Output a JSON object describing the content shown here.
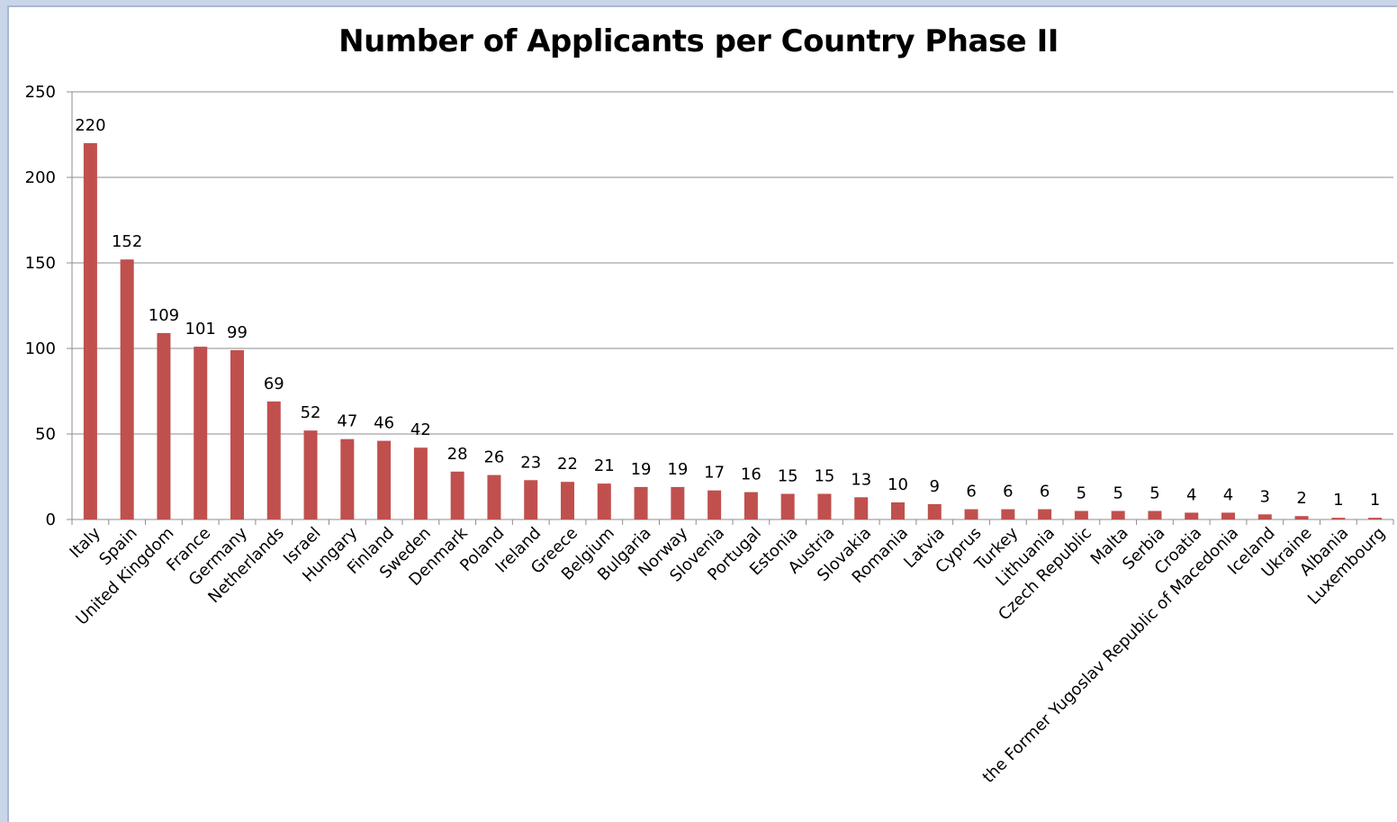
{
  "chart_data": {
    "type": "bar",
    "title": "Number of Applicants per Country Phase II",
    "xlabel": "",
    "ylabel": "",
    "ylim": [
      0,
      250
    ],
    "yticks": [
      0,
      50,
      100,
      150,
      200,
      250
    ],
    "grid": true,
    "legend": "none",
    "bar_color": "#c0504d",
    "categories": [
      "Italy",
      "Spain",
      "United Kingdom",
      "France",
      "Germany",
      "Netherlands",
      "Israel",
      "Hungary",
      "Finland",
      "Sweden",
      "Denmark",
      "Poland",
      "Ireland",
      "Greece",
      "Belgium",
      "Bulgaria",
      "Norway",
      "Slovenia",
      "Portugal",
      "Estonia",
      "Austria",
      "Slovakia",
      "Romania",
      "Latvia",
      "Cyprus",
      "Turkey",
      "Lithuania",
      "Czech Republic",
      "Malta",
      "Serbia",
      "Croatia",
      "the Former Yugoslav Republic of Macedonia",
      "Iceland",
      "Ukraine",
      "Albania",
      "Luxembourg"
    ],
    "values": [
      220,
      152,
      109,
      101,
      99,
      69,
      52,
      47,
      46,
      42,
      28,
      26,
      23,
      22,
      21,
      19,
      19,
      17,
      16,
      15,
      15,
      13,
      10,
      9,
      6,
      6,
      6,
      5,
      5,
      5,
      4,
      4,
      3,
      2,
      1,
      1
    ]
  }
}
